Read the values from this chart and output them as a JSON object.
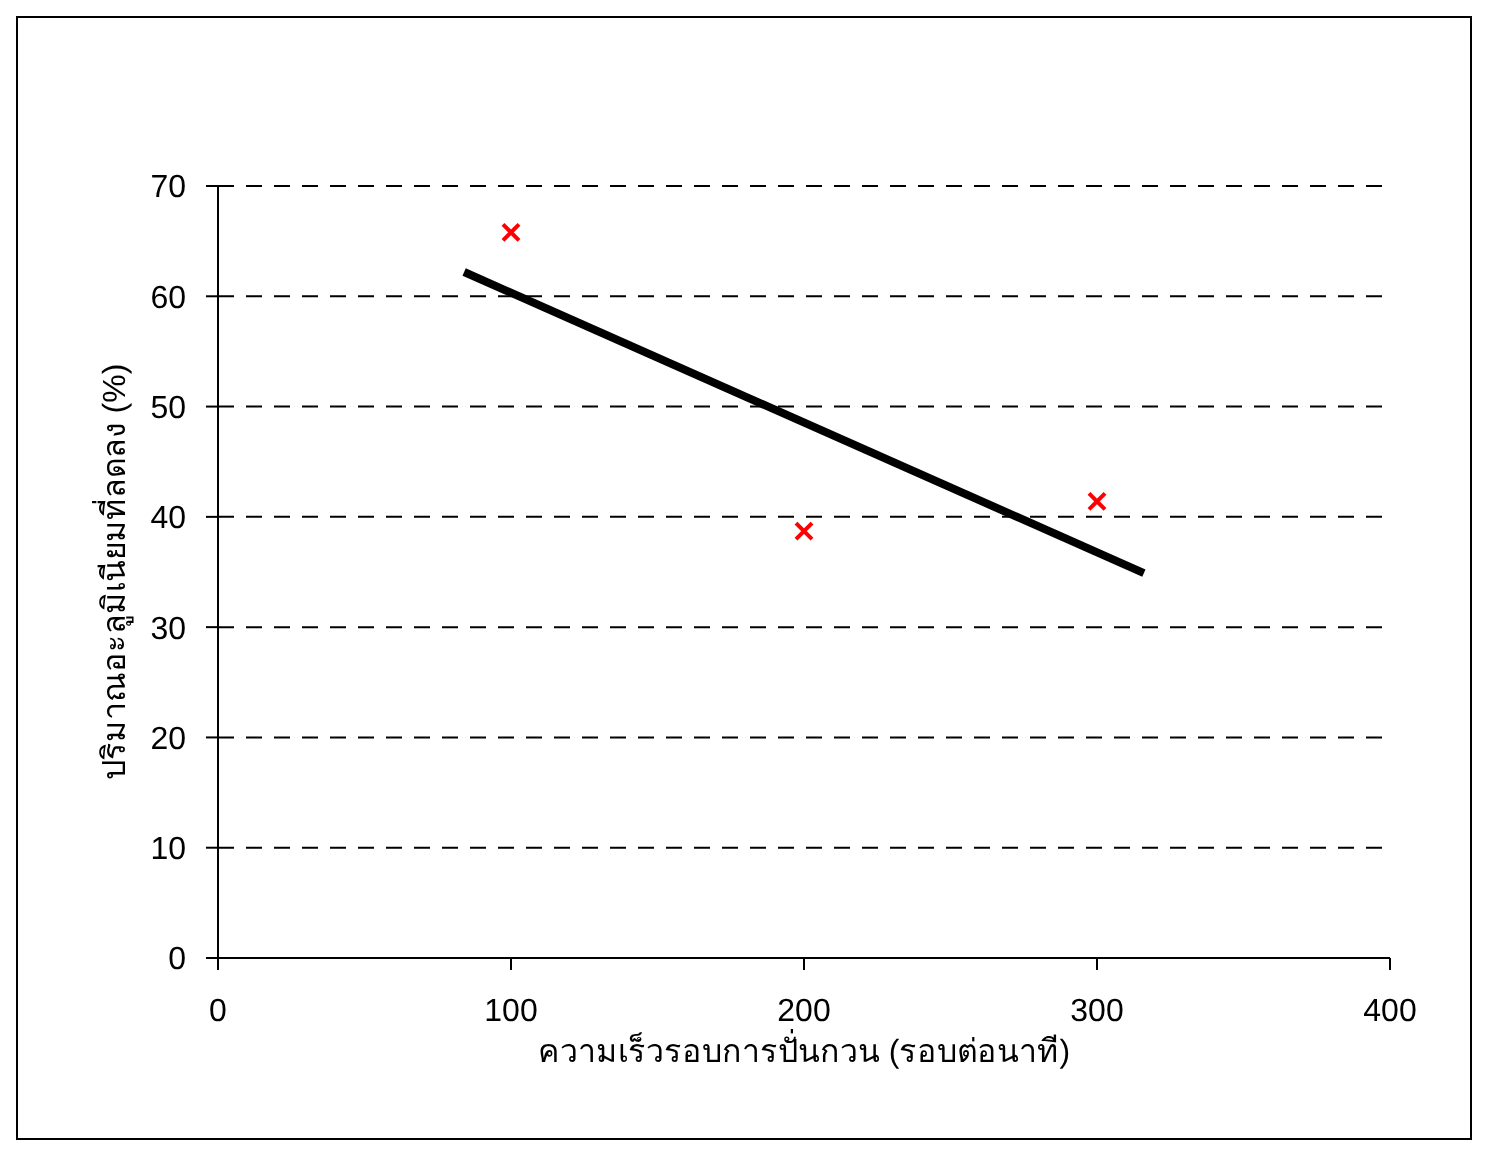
{
  "chart_data": {
    "type": "scatter",
    "xlabel": "ความเร็วรอบการปั่นกวน (รอบต่อนาที)",
    "ylabel": "ปริมาณอะลูมิเนียมที่ลดลง (%)",
    "series": [
      {
        "color": "#ff0000",
        "marker": "cross",
        "x": [
          100,
          200,
          300
        ],
        "values": [
          65.8,
          38.7,
          41.4
        ]
      },
      {
        "type": "line",
        "color": "#000000",
        "marker": "none",
        "line_style": "solid",
        "x": [
          84,
          316
        ],
        "values": [
          62.2,
          34.9
        ]
      }
    ],
    "xlim": [
      0,
      400
    ],
    "xticks": [
      0,
      100,
      200,
      300,
      400
    ],
    "ylim": [
      0,
      70
    ],
    "yticks": [
      0,
      10,
      20,
      30,
      40,
      50,
      60,
      70
    ],
    "grid": "y"
  }
}
